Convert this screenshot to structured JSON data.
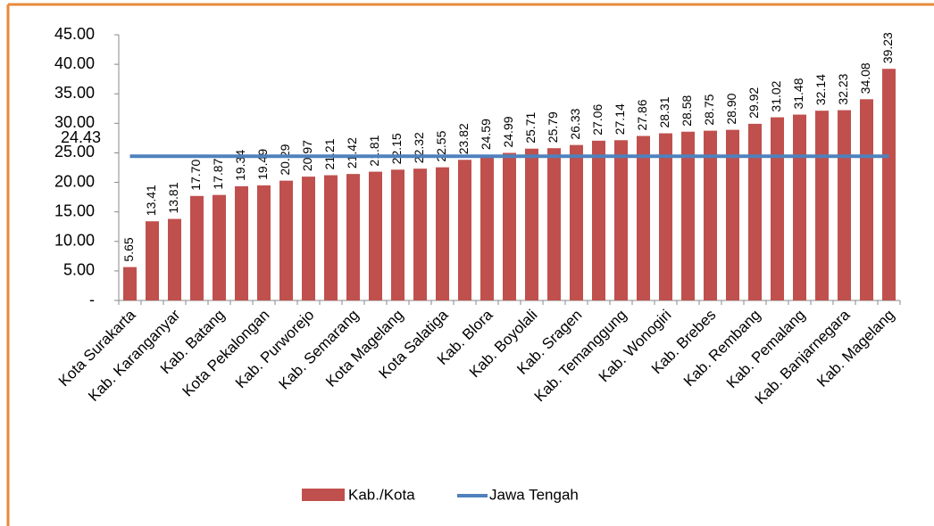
{
  "chart_data": {
    "type": "bar",
    "categories": [
      "Kota Surakarta",
      null,
      "Kab. Karanganyar",
      null,
      "Kab. Batang",
      null,
      "Kota Pekalongan",
      null,
      "Kab. Purworejo",
      null,
      "Kab. Semarang",
      null,
      "Kota Magelang",
      null,
      "Kota Salatiga",
      null,
      "Kab. Blora",
      null,
      "Kab. Boyolali",
      null,
      "Kab. Sragen",
      null,
      "Kab. Temanggung",
      null,
      "Kab. Wonogiri",
      null,
      "Kab. Brebes",
      null,
      "Kab. Rembang",
      null,
      "Kab. Pemalang",
      null,
      "Kab. Banjarnegara",
      null,
      "Kab. Magelang"
    ],
    "series": [
      {
        "name": "Kab./Kota",
        "color": "#c0504d",
        "values": [
          5.65,
          13.41,
          13.81,
          17.7,
          17.87,
          19.34,
          19.49,
          20.29,
          20.97,
          21.21,
          21.42,
          21.81,
          22.15,
          22.32,
          22.55,
          23.82,
          24.59,
          24.99,
          25.71,
          25.79,
          26.33,
          27.06,
          27.14,
          27.86,
          28.31,
          28.58,
          28.75,
          28.9,
          29.92,
          31.02,
          31.48,
          32.14,
          32.23,
          34.08,
          39.23
        ],
        "value_labels": [
          "5.65",
          "13.41",
          "13.81",
          "17.70",
          "17.87",
          "19.34",
          "19.49",
          "20.29",
          "20.97",
          "21.21",
          "21.42",
          "21.81",
          "22.15",
          "22.32",
          "22.55",
          "23.82",
          "24.59",
          "24.99",
          "25.71",
          "25.79",
          "26.33",
          "27.06",
          "27.14",
          "27.86",
          "28.31",
          "28.58",
          "28.75",
          "28.90",
          "29.92",
          "31.02",
          "31.48",
          "32.14",
          "32.23",
          "34.08",
          "39.23"
        ]
      },
      {
        "name": "Jawa Tengah",
        "color": "#4f81bd",
        "type": "line",
        "value": 24.43
      }
    ],
    "ylim": [
      0,
      45
    ],
    "yticks": [
      {
        "value": 0,
        "label": "-"
      },
      {
        "value": 5,
        "label": "5.00"
      },
      {
        "value": 10,
        "label": "10.00"
      },
      {
        "value": 15,
        "label": "15.00"
      },
      {
        "value": 20,
        "label": "20.00"
      },
      {
        "value": 25,
        "label": "25.00"
      },
      {
        "value": 30,
        "label": "30.00"
      },
      {
        "value": 35,
        "label": "35.00"
      },
      {
        "value": 40,
        "label": "40.00"
      },
      {
        "value": 45,
        "label": "45.00"
      }
    ],
    "legend": "bottom"
  }
}
